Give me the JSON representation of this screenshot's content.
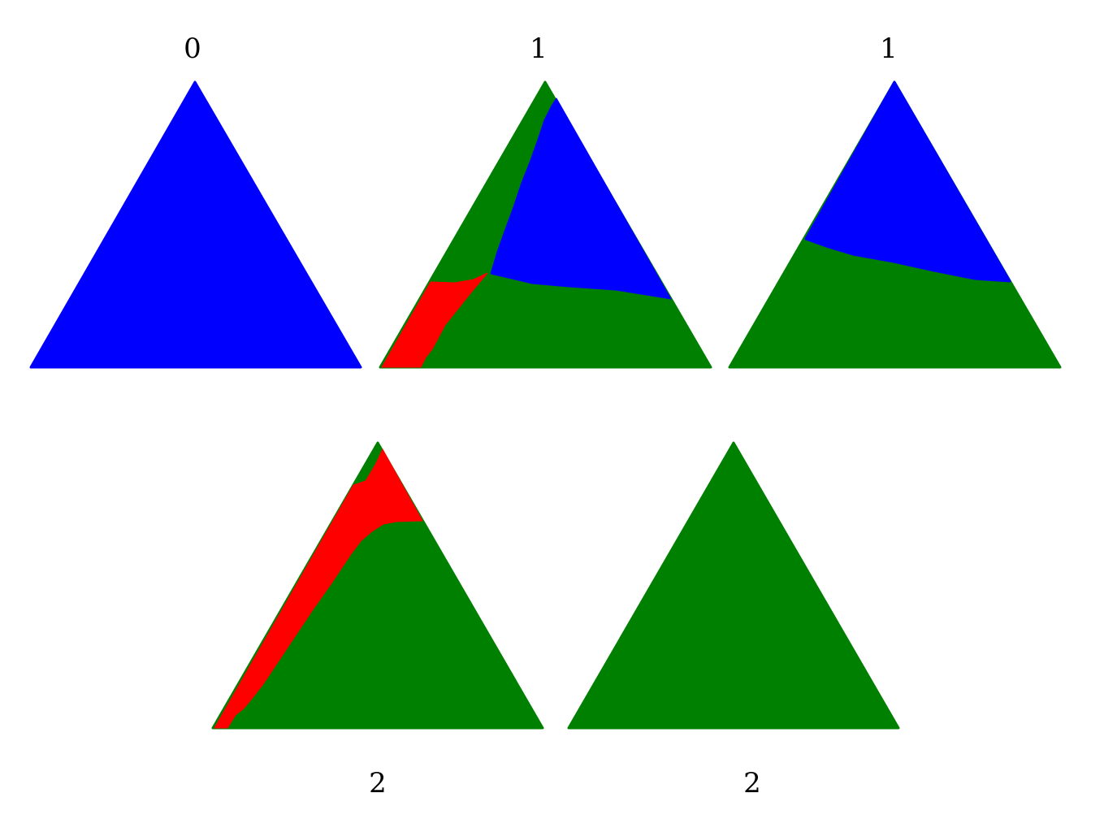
{
  "colors": {
    "blue": "#0000ff",
    "green": "#008000",
    "red": "#ff0000"
  },
  "panels": [
    {
      "label": "0",
      "regions": [
        "blue"
      ]
    },
    {
      "label": "1",
      "regions": [
        "green",
        "blue",
        "red"
      ]
    },
    {
      "label": "1",
      "regions": [
        "blue",
        "green"
      ]
    },
    {
      "label": "2",
      "regions": [
        "green",
        "red"
      ]
    },
    {
      "label": "2",
      "regions": [
        "green"
      ]
    }
  ]
}
